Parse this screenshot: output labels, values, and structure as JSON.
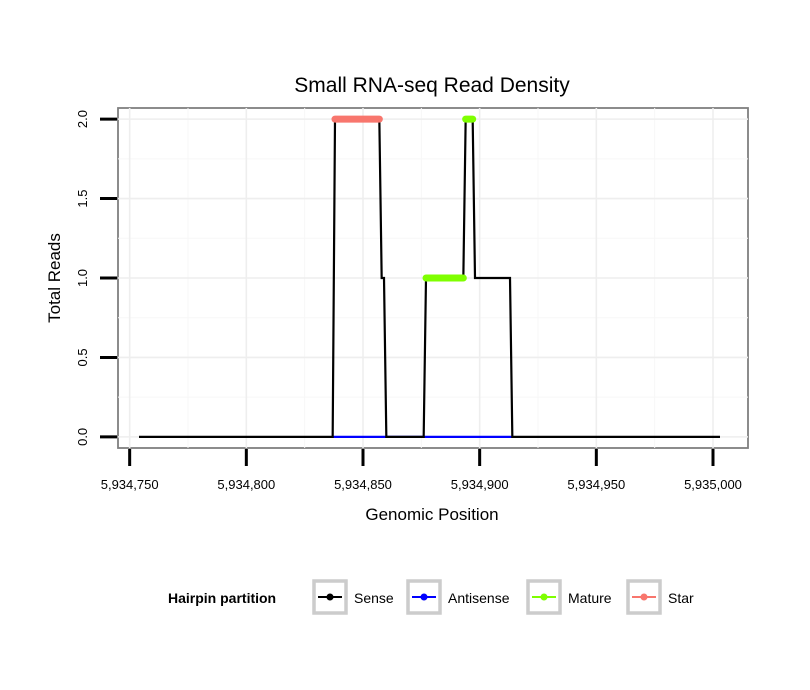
{
  "chart_data": {
    "type": "line",
    "title": "Small RNA-seq Read Density",
    "xlabel": "Genomic Position",
    "ylabel": "Total Reads",
    "xlim": [
      5934745,
      5935015
    ],
    "ylim": [
      -0.07,
      2.07
    ],
    "x_ticks": [
      {
        "value": 5934750,
        "label": "5,934,750"
      },
      {
        "value": 5934800,
        "label": "5,934,800"
      },
      {
        "value": 5934850,
        "label": "5,934,850"
      },
      {
        "value": 5934900,
        "label": "5,934,900"
      },
      {
        "value": 5934950,
        "label": "5,934,950"
      },
      {
        "value": 5935000,
        "label": "5,935,000"
      }
    ],
    "y_ticks": [
      {
        "value": 0.0,
        "label": "0.0"
      },
      {
        "value": 0.5,
        "label": "0.5"
      },
      {
        "value": 1.0,
        "label": "1.0"
      },
      {
        "value": 1.5,
        "label": "1.5"
      },
      {
        "value": 2.0,
        "label": "2.0"
      }
    ],
    "grid": true,
    "legend_position": "bottom",
    "legend_title": "Hairpin partition",
    "series": [
      {
        "name": "Sense",
        "color": "#000000",
        "kind": "line",
        "points": [
          [
            5934754,
            0
          ],
          [
            5934837,
            0
          ],
          [
            5934838,
            2
          ],
          [
            5934857,
            2
          ],
          [
            5934858,
            1
          ],
          [
            5934859,
            1
          ],
          [
            5934860,
            0
          ],
          [
            5934876,
            0
          ],
          [
            5934877,
            1
          ],
          [
            5934893,
            1
          ],
          [
            5934894,
            2
          ],
          [
            5934897,
            2
          ],
          [
            5934898,
            1
          ],
          [
            5934913,
            1
          ],
          [
            5934914,
            0
          ],
          [
            5935003,
            0
          ]
        ]
      },
      {
        "name": "Antisense",
        "color": "#0000ff",
        "kind": "line",
        "points": [
          [
            5934837,
            0
          ],
          [
            5934914,
            0
          ]
        ]
      },
      {
        "name": "Mature",
        "color": "#7fff00",
        "kind": "segments",
        "segments": [
          [
            [
              5934877,
              1
            ],
            [
              5934893,
              1
            ]
          ],
          [
            [
              5934894,
              2
            ],
            [
              5934897,
              2
            ]
          ]
        ]
      },
      {
        "name": "Star",
        "color": "#f8766d",
        "kind": "segments",
        "segments": [
          [
            [
              5934838,
              2
            ],
            [
              5934857,
              2
            ]
          ]
        ]
      }
    ]
  }
}
